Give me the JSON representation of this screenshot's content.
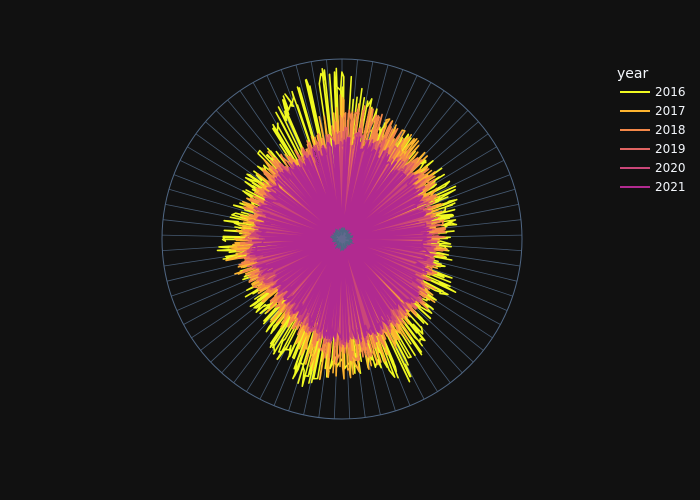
{
  "colors": {
    "background": "#111111",
    "grid": "#506784",
    "text": "#f2f5fa"
  },
  "chart_data": {
    "type": "polar-line",
    "title": "",
    "radial_axis": {
      "ticks_visible": false,
      "max": 100
    },
    "angular_axis": {
      "ticks_visible": false,
      "divisions": 73
    },
    "grid": true,
    "legend": {
      "title": "year",
      "placement": "top-right",
      "entries": [
        {
          "name": "2016",
          "color": "#f0f921"
        },
        {
          "name": "2017",
          "color": "#fdb42f"
        },
        {
          "name": "2018",
          "color": "#f48849"
        },
        {
          "name": "2019",
          "color": "#e16462"
        },
        {
          "name": "2020",
          "color": "#ca4678"
        },
        {
          "name": "2021",
          "color": "#b12a90"
        }
      ]
    },
    "series": [
      {
        "name": "2016",
        "color": "#f0f921",
        "profile": [
          [
            0,
            94
          ],
          [
            6,
            88
          ],
          [
            12,
            80
          ],
          [
            18,
            72
          ],
          [
            24,
            68
          ],
          [
            30,
            70
          ],
          [
            36,
            68
          ],
          [
            45,
            66
          ],
          [
            55,
            68
          ],
          [
            65,
            70
          ],
          [
            75,
            66
          ],
          [
            85,
            65
          ],
          [
            95,
            62
          ],
          [
            105,
            64
          ],
          [
            115,
            70
          ],
          [
            125,
            64
          ],
          [
            135,
            68
          ],
          [
            145,
            78
          ],
          [
            155,
            88
          ],
          [
            165,
            74
          ],
          [
            175,
            76
          ],
          [
            185,
            76
          ],
          [
            195,
            86
          ],
          [
            205,
            78
          ],
          [
            215,
            72
          ],
          [
            225,
            62
          ],
          [
            235,
            66
          ],
          [
            245,
            58
          ],
          [
            255,
            64
          ],
          [
            265,
            70
          ],
          [
            275,
            68
          ],
          [
            285,
            64
          ],
          [
            295,
            62
          ],
          [
            305,
            64
          ],
          [
            315,
            68
          ],
          [
            325,
            72
          ],
          [
            335,
            84
          ],
          [
            345,
            92
          ],
          [
            352,
            98
          ],
          [
            360,
            94
          ]
        ],
        "spike_amp": 12,
        "seed": 11
      },
      {
        "name": "2017",
        "color": "#fdb42f",
        "profile": [
          [
            0,
            82
          ],
          [
            10,
            76
          ],
          [
            20,
            72
          ],
          [
            30,
            74
          ],
          [
            40,
            68
          ],
          [
            50,
            66
          ],
          [
            60,
            62
          ],
          [
            70,
            60
          ],
          [
            80,
            58
          ],
          [
            90,
            60
          ],
          [
            100,
            58
          ],
          [
            110,
            56
          ],
          [
            120,
            62
          ],
          [
            130,
            64
          ],
          [
            140,
            62
          ],
          [
            150,
            72
          ],
          [
            160,
            72
          ],
          [
            170,
            76
          ],
          [
            180,
            78
          ],
          [
            190,
            80
          ],
          [
            200,
            68
          ],
          [
            210,
            60
          ],
          [
            220,
            62
          ],
          [
            230,
            58
          ],
          [
            240,
            56
          ],
          [
            250,
            62
          ],
          [
            260,
            66
          ],
          [
            270,
            60
          ],
          [
            280,
            58
          ],
          [
            290,
            60
          ],
          [
            300,
            58
          ],
          [
            310,
            62
          ],
          [
            320,
            64
          ],
          [
            330,
            58
          ],
          [
            340,
            56
          ],
          [
            350,
            70
          ],
          [
            360,
            82
          ]
        ],
        "spike_amp": 16,
        "seed": 23
      },
      {
        "name": "2018",
        "color": "#f48849",
        "profile": [
          [
            0,
            70
          ],
          [
            10,
            76
          ],
          [
            20,
            72
          ],
          [
            30,
            68
          ],
          [
            40,
            62
          ],
          [
            50,
            64
          ],
          [
            60,
            60
          ],
          [
            70,
            56
          ],
          [
            80,
            58
          ],
          [
            90,
            60
          ],
          [
            100,
            56
          ],
          [
            110,
            58
          ],
          [
            120,
            60
          ],
          [
            130,
            62
          ],
          [
            140,
            58
          ],
          [
            150,
            60
          ],
          [
            160,
            66
          ],
          [
            170,
            68
          ],
          [
            180,
            70
          ],
          [
            190,
            66
          ],
          [
            200,
            60
          ],
          [
            210,
            58
          ],
          [
            220,
            56
          ],
          [
            230,
            54
          ],
          [
            240,
            56
          ],
          [
            250,
            58
          ],
          [
            260,
            60
          ],
          [
            270,
            58
          ],
          [
            280,
            56
          ],
          [
            290,
            58
          ],
          [
            300,
            56
          ],
          [
            310,
            58
          ],
          [
            320,
            60
          ],
          [
            330,
            56
          ],
          [
            340,
            58
          ],
          [
            350,
            62
          ],
          [
            360,
            70
          ]
        ],
        "spike_amp": 12,
        "seed": 37
      },
      {
        "name": "2019",
        "color": "#e16462",
        "profile": [
          [
            0,
            62
          ],
          [
            10,
            64
          ],
          [
            20,
            62
          ],
          [
            30,
            60
          ],
          [
            40,
            58
          ],
          [
            50,
            58
          ],
          [
            60,
            56
          ],
          [
            70,
            54
          ],
          [
            80,
            55
          ],
          [
            90,
            56
          ],
          [
            100,
            54
          ],
          [
            110,
            55
          ],
          [
            120,
            56
          ],
          [
            130,
            58
          ],
          [
            140,
            56
          ],
          [
            150,
            58
          ],
          [
            160,
            60
          ],
          [
            170,
            62
          ],
          [
            180,
            62
          ],
          [
            190,
            60
          ],
          [
            200,
            56
          ],
          [
            210,
            54
          ],
          [
            220,
            52
          ],
          [
            230,
            50
          ],
          [
            240,
            52
          ],
          [
            250,
            54
          ],
          [
            260,
            56
          ],
          [
            270,
            54
          ],
          [
            280,
            52
          ],
          [
            290,
            54
          ],
          [
            300,
            52
          ],
          [
            310,
            54
          ],
          [
            320,
            56
          ],
          [
            330,
            54
          ],
          [
            340,
            56
          ],
          [
            350,
            58
          ],
          [
            360,
            62
          ]
        ],
        "spike_amp": 10,
        "seed": 53
      },
      {
        "name": "2020",
        "color": "#ca4678",
        "profile": [
          [
            0,
            58
          ],
          [
            10,
            60
          ],
          [
            20,
            58
          ],
          [
            30,
            56
          ],
          [
            40,
            55
          ],
          [
            50,
            56
          ],
          [
            60,
            54
          ],
          [
            70,
            52
          ],
          [
            80,
            53
          ],
          [
            90,
            54
          ],
          [
            100,
            52
          ],
          [
            110,
            53
          ],
          [
            120,
            54
          ],
          [
            130,
            56
          ],
          [
            140,
            54
          ],
          [
            150,
            56
          ],
          [
            160,
            58
          ],
          [
            170,
            60
          ],
          [
            180,
            60
          ],
          [
            190,
            58
          ],
          [
            200,
            54
          ],
          [
            210,
            52
          ],
          [
            220,
            50
          ],
          [
            230,
            48
          ],
          [
            240,
            50
          ],
          [
            250,
            52
          ],
          [
            260,
            54
          ],
          [
            270,
            52
          ],
          [
            280,
            50
          ],
          [
            290,
            52
          ],
          [
            300,
            50
          ],
          [
            310,
            52
          ],
          [
            320,
            54
          ],
          [
            330,
            52
          ],
          [
            340,
            54
          ],
          [
            350,
            56
          ],
          [
            360,
            58
          ]
        ],
        "spike_amp": 9,
        "seed": 71
      },
      {
        "name": "2021",
        "color": "#b12a90",
        "profile": [
          [
            0,
            56
          ],
          [
            10,
            58
          ],
          [
            20,
            56
          ],
          [
            30,
            54
          ],
          [
            40,
            53
          ],
          [
            50,
            54
          ],
          [
            60,
            52
          ],
          [
            70,
            50
          ],
          [
            80,
            51
          ],
          [
            90,
            52
          ],
          [
            100,
            50
          ],
          [
            110,
            51
          ],
          [
            120,
            52
          ],
          [
            130,
            54
          ],
          [
            140,
            52
          ],
          [
            150,
            54
          ],
          [
            160,
            56
          ],
          [
            170,
            58
          ],
          [
            180,
            58
          ],
          [
            190,
            56
          ],
          [
            200,
            52
          ],
          [
            210,
            50
          ],
          [
            220,
            48
          ],
          [
            230,
            46
          ],
          [
            240,
            48
          ],
          [
            250,
            50
          ],
          [
            260,
            52
          ],
          [
            270,
            50
          ],
          [
            280,
            48
          ],
          [
            290,
            50
          ],
          [
            300,
            48
          ],
          [
            310,
            50
          ],
          [
            320,
            52
          ],
          [
            330,
            50
          ],
          [
            340,
            52
          ],
          [
            350,
            54
          ],
          [
            360,
            56
          ]
        ],
        "spike_amp": 8,
        "seed": 89
      }
    ]
  }
}
